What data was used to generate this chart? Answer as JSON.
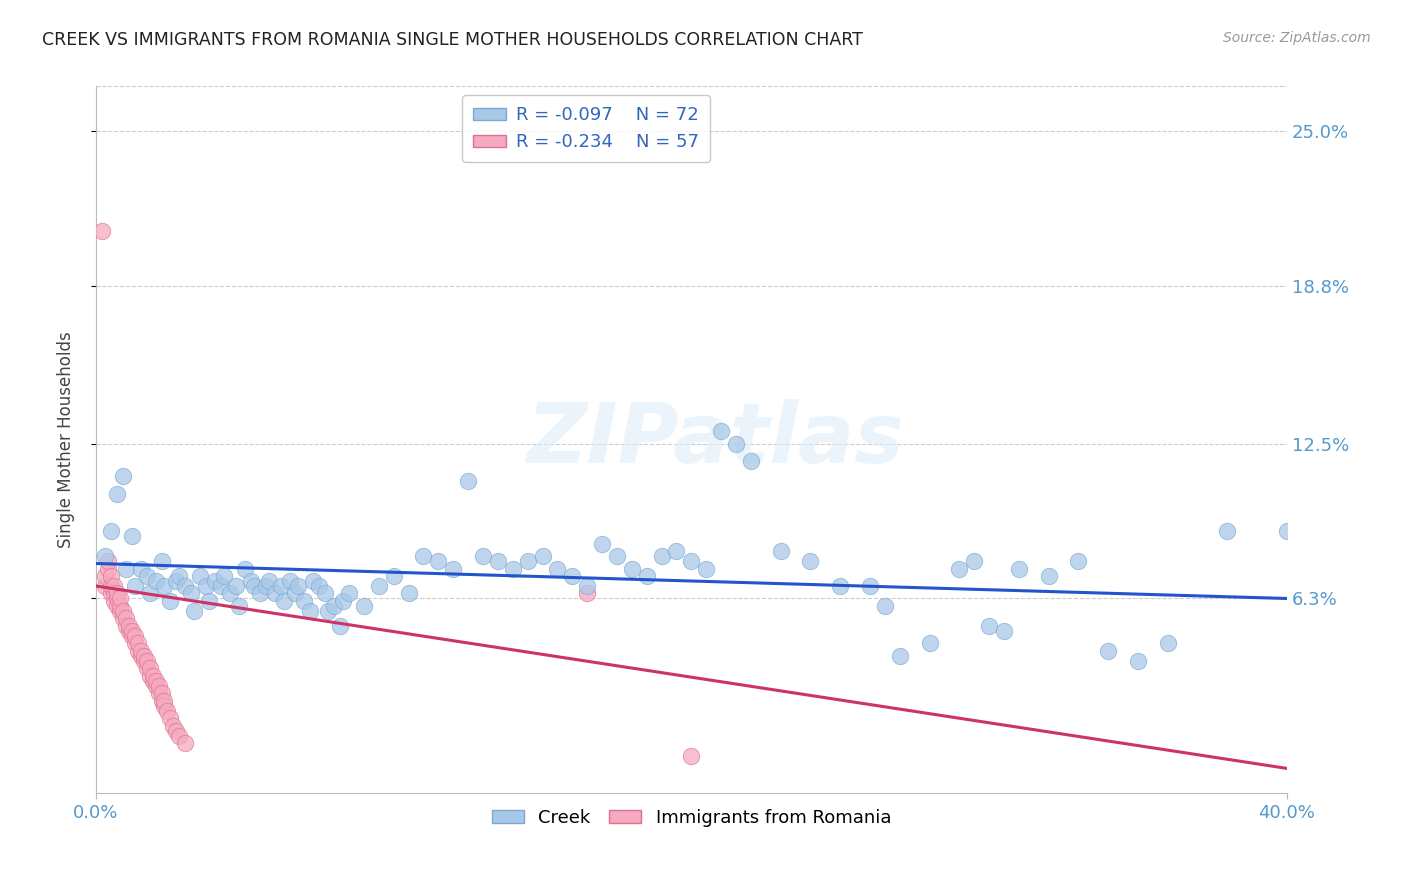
{
  "title": "CREEK VS IMMIGRANTS FROM ROMANIA SINGLE MOTHER HOUSEHOLDS CORRELATION CHART",
  "source": "Source: ZipAtlas.com",
  "ylabel": "Single Mother Households",
  "ytick_labels": [
    "25.0%",
    "18.8%",
    "12.5%",
    "6.3%"
  ],
  "ytick_values": [
    0.25,
    0.188,
    0.125,
    0.063
  ],
  "xmin": 0.0,
  "xmax": 0.4,
  "ymin": -0.015,
  "ymax": 0.268,
  "creek_color": "#a8c8e8",
  "creek_edge": "#7aaad0",
  "romania_color": "#f5aabf",
  "romania_edge": "#e07090",
  "trendline_creek": "#2255cc",
  "trendline_romania": "#cc3366",
  "legend_box_edge": "#bbbbbb",
  "watermark": "ZIPatlas",
  "title_color": "#222222",
  "axis_label_color": "#5599cc",
  "grid_color": "#cccccc",
  "creek_scatter": [
    [
      0.003,
      0.08
    ],
    [
      0.005,
      0.09
    ],
    [
      0.007,
      0.105
    ],
    [
      0.009,
      0.112
    ],
    [
      0.01,
      0.075
    ],
    [
      0.012,
      0.088
    ],
    [
      0.013,
      0.068
    ],
    [
      0.015,
      0.075
    ],
    [
      0.017,
      0.072
    ],
    [
      0.018,
      0.065
    ],
    [
      0.02,
      0.07
    ],
    [
      0.022,
      0.078
    ],
    [
      0.023,
      0.068
    ],
    [
      0.025,
      0.062
    ],
    [
      0.027,
      0.07
    ],
    [
      0.028,
      0.072
    ],
    [
      0.03,
      0.068
    ],
    [
      0.032,
      0.065
    ],
    [
      0.033,
      0.058
    ],
    [
      0.035,
      0.072
    ],
    [
      0.037,
      0.068
    ],
    [
      0.038,
      0.062
    ],
    [
      0.04,
      0.07
    ],
    [
      0.042,
      0.068
    ],
    [
      0.043,
      0.072
    ],
    [
      0.045,
      0.065
    ],
    [
      0.047,
      0.068
    ],
    [
      0.048,
      0.06
    ],
    [
      0.05,
      0.075
    ],
    [
      0.052,
      0.07
    ],
    [
      0.053,
      0.068
    ],
    [
      0.055,
      0.065
    ],
    [
      0.057,
      0.068
    ],
    [
      0.058,
      0.07
    ],
    [
      0.06,
      0.065
    ],
    [
      0.062,
      0.068
    ],
    [
      0.063,
      0.062
    ],
    [
      0.065,
      0.07
    ],
    [
      0.067,
      0.065
    ],
    [
      0.068,
      0.068
    ],
    [
      0.07,
      0.062
    ],
    [
      0.072,
      0.058
    ],
    [
      0.073,
      0.07
    ],
    [
      0.075,
      0.068
    ],
    [
      0.077,
      0.065
    ],
    [
      0.078,
      0.058
    ],
    [
      0.08,
      0.06
    ],
    [
      0.082,
      0.052
    ],
    [
      0.083,
      0.062
    ],
    [
      0.085,
      0.065
    ],
    [
      0.09,
      0.06
    ],
    [
      0.095,
      0.068
    ],
    [
      0.1,
      0.072
    ],
    [
      0.105,
      0.065
    ],
    [
      0.11,
      0.08
    ],
    [
      0.115,
      0.078
    ],
    [
      0.12,
      0.075
    ],
    [
      0.125,
      0.11
    ],
    [
      0.13,
      0.08
    ],
    [
      0.135,
      0.078
    ],
    [
      0.14,
      0.075
    ],
    [
      0.145,
      0.078
    ],
    [
      0.15,
      0.08
    ],
    [
      0.155,
      0.075
    ],
    [
      0.16,
      0.072
    ],
    [
      0.165,
      0.068
    ],
    [
      0.17,
      0.085
    ],
    [
      0.175,
      0.08
    ],
    [
      0.18,
      0.075
    ],
    [
      0.185,
      0.072
    ],
    [
      0.19,
      0.08
    ],
    [
      0.195,
      0.082
    ],
    [
      0.2,
      0.078
    ],
    [
      0.205,
      0.075
    ],
    [
      0.21,
      0.13
    ],
    [
      0.215,
      0.125
    ],
    [
      0.22,
      0.118
    ],
    [
      0.23,
      0.082
    ],
    [
      0.24,
      0.078
    ],
    [
      0.25,
      0.068
    ],
    [
      0.26,
      0.068
    ],
    [
      0.265,
      0.06
    ],
    [
      0.27,
      0.04
    ],
    [
      0.28,
      0.045
    ],
    [
      0.29,
      0.075
    ],
    [
      0.295,
      0.078
    ],
    [
      0.3,
      0.052
    ],
    [
      0.305,
      0.05
    ],
    [
      0.31,
      0.075
    ],
    [
      0.32,
      0.072
    ],
    [
      0.33,
      0.078
    ],
    [
      0.34,
      0.042
    ],
    [
      0.35,
      0.038
    ],
    [
      0.36,
      0.045
    ],
    [
      0.38,
      0.09
    ],
    [
      0.4,
      0.09
    ]
  ],
  "romania_scatter": [
    [
      0.002,
      0.21
    ],
    [
      0.003,
      0.068
    ],
    [
      0.003,
      0.072
    ],
    [
      0.004,
      0.075
    ],
    [
      0.004,
      0.078
    ],
    [
      0.005,
      0.065
    ],
    [
      0.005,
      0.068
    ],
    [
      0.005,
      0.072
    ],
    [
      0.006,
      0.062
    ],
    [
      0.006,
      0.065
    ],
    [
      0.006,
      0.068
    ],
    [
      0.007,
      0.06
    ],
    [
      0.007,
      0.063
    ],
    [
      0.007,
      0.065
    ],
    [
      0.008,
      0.058
    ],
    [
      0.008,
      0.06
    ],
    [
      0.008,
      0.063
    ],
    [
      0.009,
      0.055
    ],
    [
      0.009,
      0.058
    ],
    [
      0.01,
      0.052
    ],
    [
      0.01,
      0.055
    ],
    [
      0.011,
      0.05
    ],
    [
      0.011,
      0.052
    ],
    [
      0.012,
      0.048
    ],
    [
      0.012,
      0.05
    ],
    [
      0.013,
      0.045
    ],
    [
      0.013,
      0.048
    ],
    [
      0.014,
      0.042
    ],
    [
      0.014,
      0.045
    ],
    [
      0.015,
      0.04
    ],
    [
      0.015,
      0.042
    ],
    [
      0.016,
      0.038
    ],
    [
      0.016,
      0.04
    ],
    [
      0.017,
      0.035
    ],
    [
      0.017,
      0.038
    ],
    [
      0.018,
      0.032
    ],
    [
      0.018,
      0.035
    ],
    [
      0.019,
      0.03
    ],
    [
      0.019,
      0.032
    ],
    [
      0.02,
      0.028
    ],
    [
      0.02,
      0.03
    ],
    [
      0.021,
      0.025
    ],
    [
      0.021,
      0.028
    ],
    [
      0.022,
      0.022
    ],
    [
      0.022,
      0.025
    ],
    [
      0.023,
      0.02
    ],
    [
      0.023,
      0.022
    ],
    [
      0.024,
      0.018
    ],
    [
      0.025,
      0.015
    ],
    [
      0.026,
      0.012
    ],
    [
      0.027,
      0.01
    ],
    [
      0.028,
      0.008
    ],
    [
      0.03,
      0.005
    ],
    [
      0.165,
      0.065
    ],
    [
      0.2,
      0.0
    ]
  ],
  "creek_trend_x": [
    0.0,
    0.4
  ],
  "creek_trend_y": [
    0.077,
    0.063
  ],
  "romania_trend_x": [
    0.0,
    0.4
  ],
  "romania_trend_y": [
    0.068,
    -0.005
  ]
}
